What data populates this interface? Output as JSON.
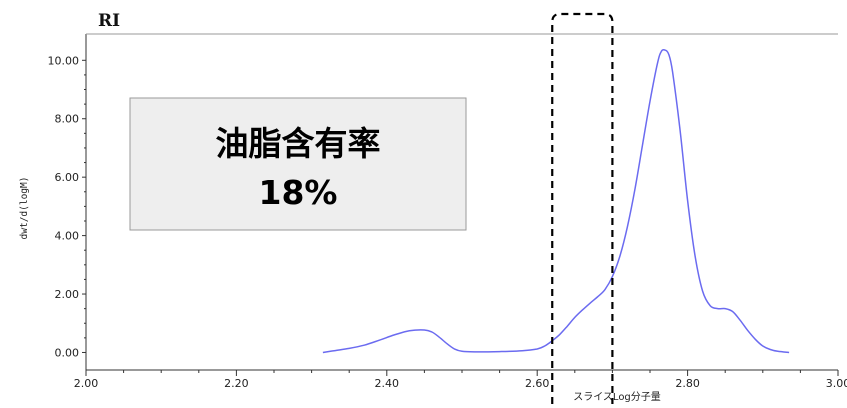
{
  "chart_data": {
    "type": "line",
    "title": "RI",
    "xlabel": "スライスLog分子量",
    "ylabel": "dwt/d(logM)",
    "xlim": [
      2.0,
      3.0
    ],
    "ylim": [
      -0.6,
      10.9
    ],
    "xticks": [
      2.0,
      2.2,
      2.4,
      2.6,
      2.8,
      3.0
    ],
    "xtick_labels": [
      "2.00",
      "2.20",
      "2.40",
      "2.60",
      "2.80",
      "3.00"
    ],
    "yticks": [
      0,
      2,
      4,
      6,
      8,
      10
    ],
    "ytick_labels": [
      "0.00",
      "2.00",
      "4.00",
      "6.00",
      "8.00",
      "10.00"
    ],
    "grid": false,
    "series": [
      {
        "color": "#6b6bf0",
        "x": [
          2.315,
          2.33,
          2.35,
          2.37,
          2.39,
          2.41,
          2.43,
          2.45,
          2.46,
          2.47,
          2.48,
          2.49,
          2.5,
          2.52,
          2.55,
          2.58,
          2.6,
          2.61,
          2.62,
          2.63,
          2.64,
          2.65,
          2.66,
          2.67,
          2.68,
          2.69,
          2.7,
          2.71,
          2.72,
          2.73,
          2.74,
          2.75,
          2.76,
          2.765,
          2.77,
          2.775,
          2.78,
          2.79,
          2.8,
          2.81,
          2.82,
          2.83,
          2.84,
          2.85,
          2.86,
          2.87,
          2.88,
          2.89,
          2.9,
          2.91,
          2.92,
          2.935
        ],
        "y": [
          0.0,
          0.06,
          0.14,
          0.25,
          0.42,
          0.6,
          0.74,
          0.77,
          0.7,
          0.52,
          0.3,
          0.12,
          0.04,
          0.02,
          0.03,
          0.06,
          0.12,
          0.22,
          0.4,
          0.62,
          0.9,
          1.2,
          1.45,
          1.68,
          1.9,
          2.15,
          2.6,
          3.3,
          4.3,
          5.6,
          7.1,
          8.6,
          9.9,
          10.3,
          10.35,
          10.2,
          9.6,
          7.6,
          5.2,
          3.3,
          2.1,
          1.6,
          1.5,
          1.5,
          1.4,
          1.1,
          0.75,
          0.45,
          0.22,
          0.1,
          0.04,
          0.0
        ]
      }
    ],
    "annotations": [
      {
        "text": "油脂含有率",
        "text2": "18%"
      }
    ],
    "highlight_region": {
      "x_start": 2.62,
      "x_end": 2.7,
      "style": "dashed"
    }
  }
}
